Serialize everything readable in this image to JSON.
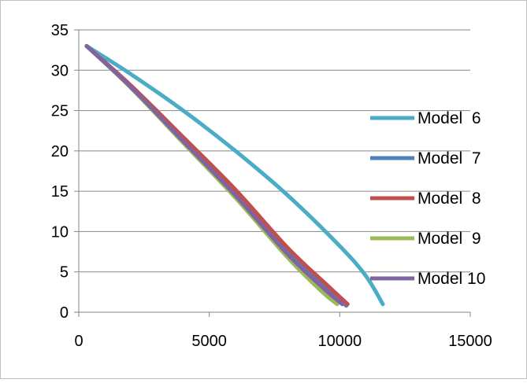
{
  "chart_data": {
    "type": "line",
    "title": "",
    "xlabel": "",
    "ylabel": "",
    "xlim": [
      0,
      15000
    ],
    "ylim": [
      0,
      35
    ],
    "x_ticks": [
      "0",
      "5000",
      "10000",
      "15000"
    ],
    "y_ticks": [
      "0",
      "5",
      "10",
      "15",
      "20",
      "25",
      "30",
      "35"
    ],
    "grid": "horizontal",
    "legend_position": "right",
    "series": [
      {
        "name": "Model  6",
        "color": "#4BACC6",
        "x": [
          300,
          2000,
          4000,
          6000,
          8000,
          10000,
          11000,
          11650
        ],
        "y": [
          33,
          29.5,
          25,
          20,
          14.5,
          8.2,
          4.5,
          1
        ]
      },
      {
        "name": "Model  7",
        "color": "#4F81BD",
        "x": [
          300,
          2000,
          4000,
          6000,
          8000,
          9500,
          10250
        ],
        "y": [
          33,
          28,
          21.5,
          15,
          7.8,
          3.2,
          0.8
        ]
      },
      {
        "name": "Model  8",
        "color": "#C0504D",
        "x": [
          300,
          2000,
          4000,
          6000,
          8000,
          9500,
          10300
        ],
        "y": [
          33,
          28.1,
          21.7,
          15.2,
          8.0,
          3.4,
          1
        ]
      },
      {
        "name": "Model  9",
        "color": "#9BBB59",
        "x": [
          300,
          2000,
          4000,
          6000,
          8000,
          9300,
          9900
        ],
        "y": [
          33,
          27.8,
          21,
          14.2,
          6.8,
          2.6,
          1
        ]
      },
      {
        "name": "Model 10",
        "color": "#8064A2",
        "x": [
          300,
          2000,
          4000,
          6000,
          8000,
          9400,
          10100
        ],
        "y": [
          33,
          27.9,
          21.2,
          14.5,
          7.2,
          2.9,
          1
        ]
      }
    ]
  }
}
